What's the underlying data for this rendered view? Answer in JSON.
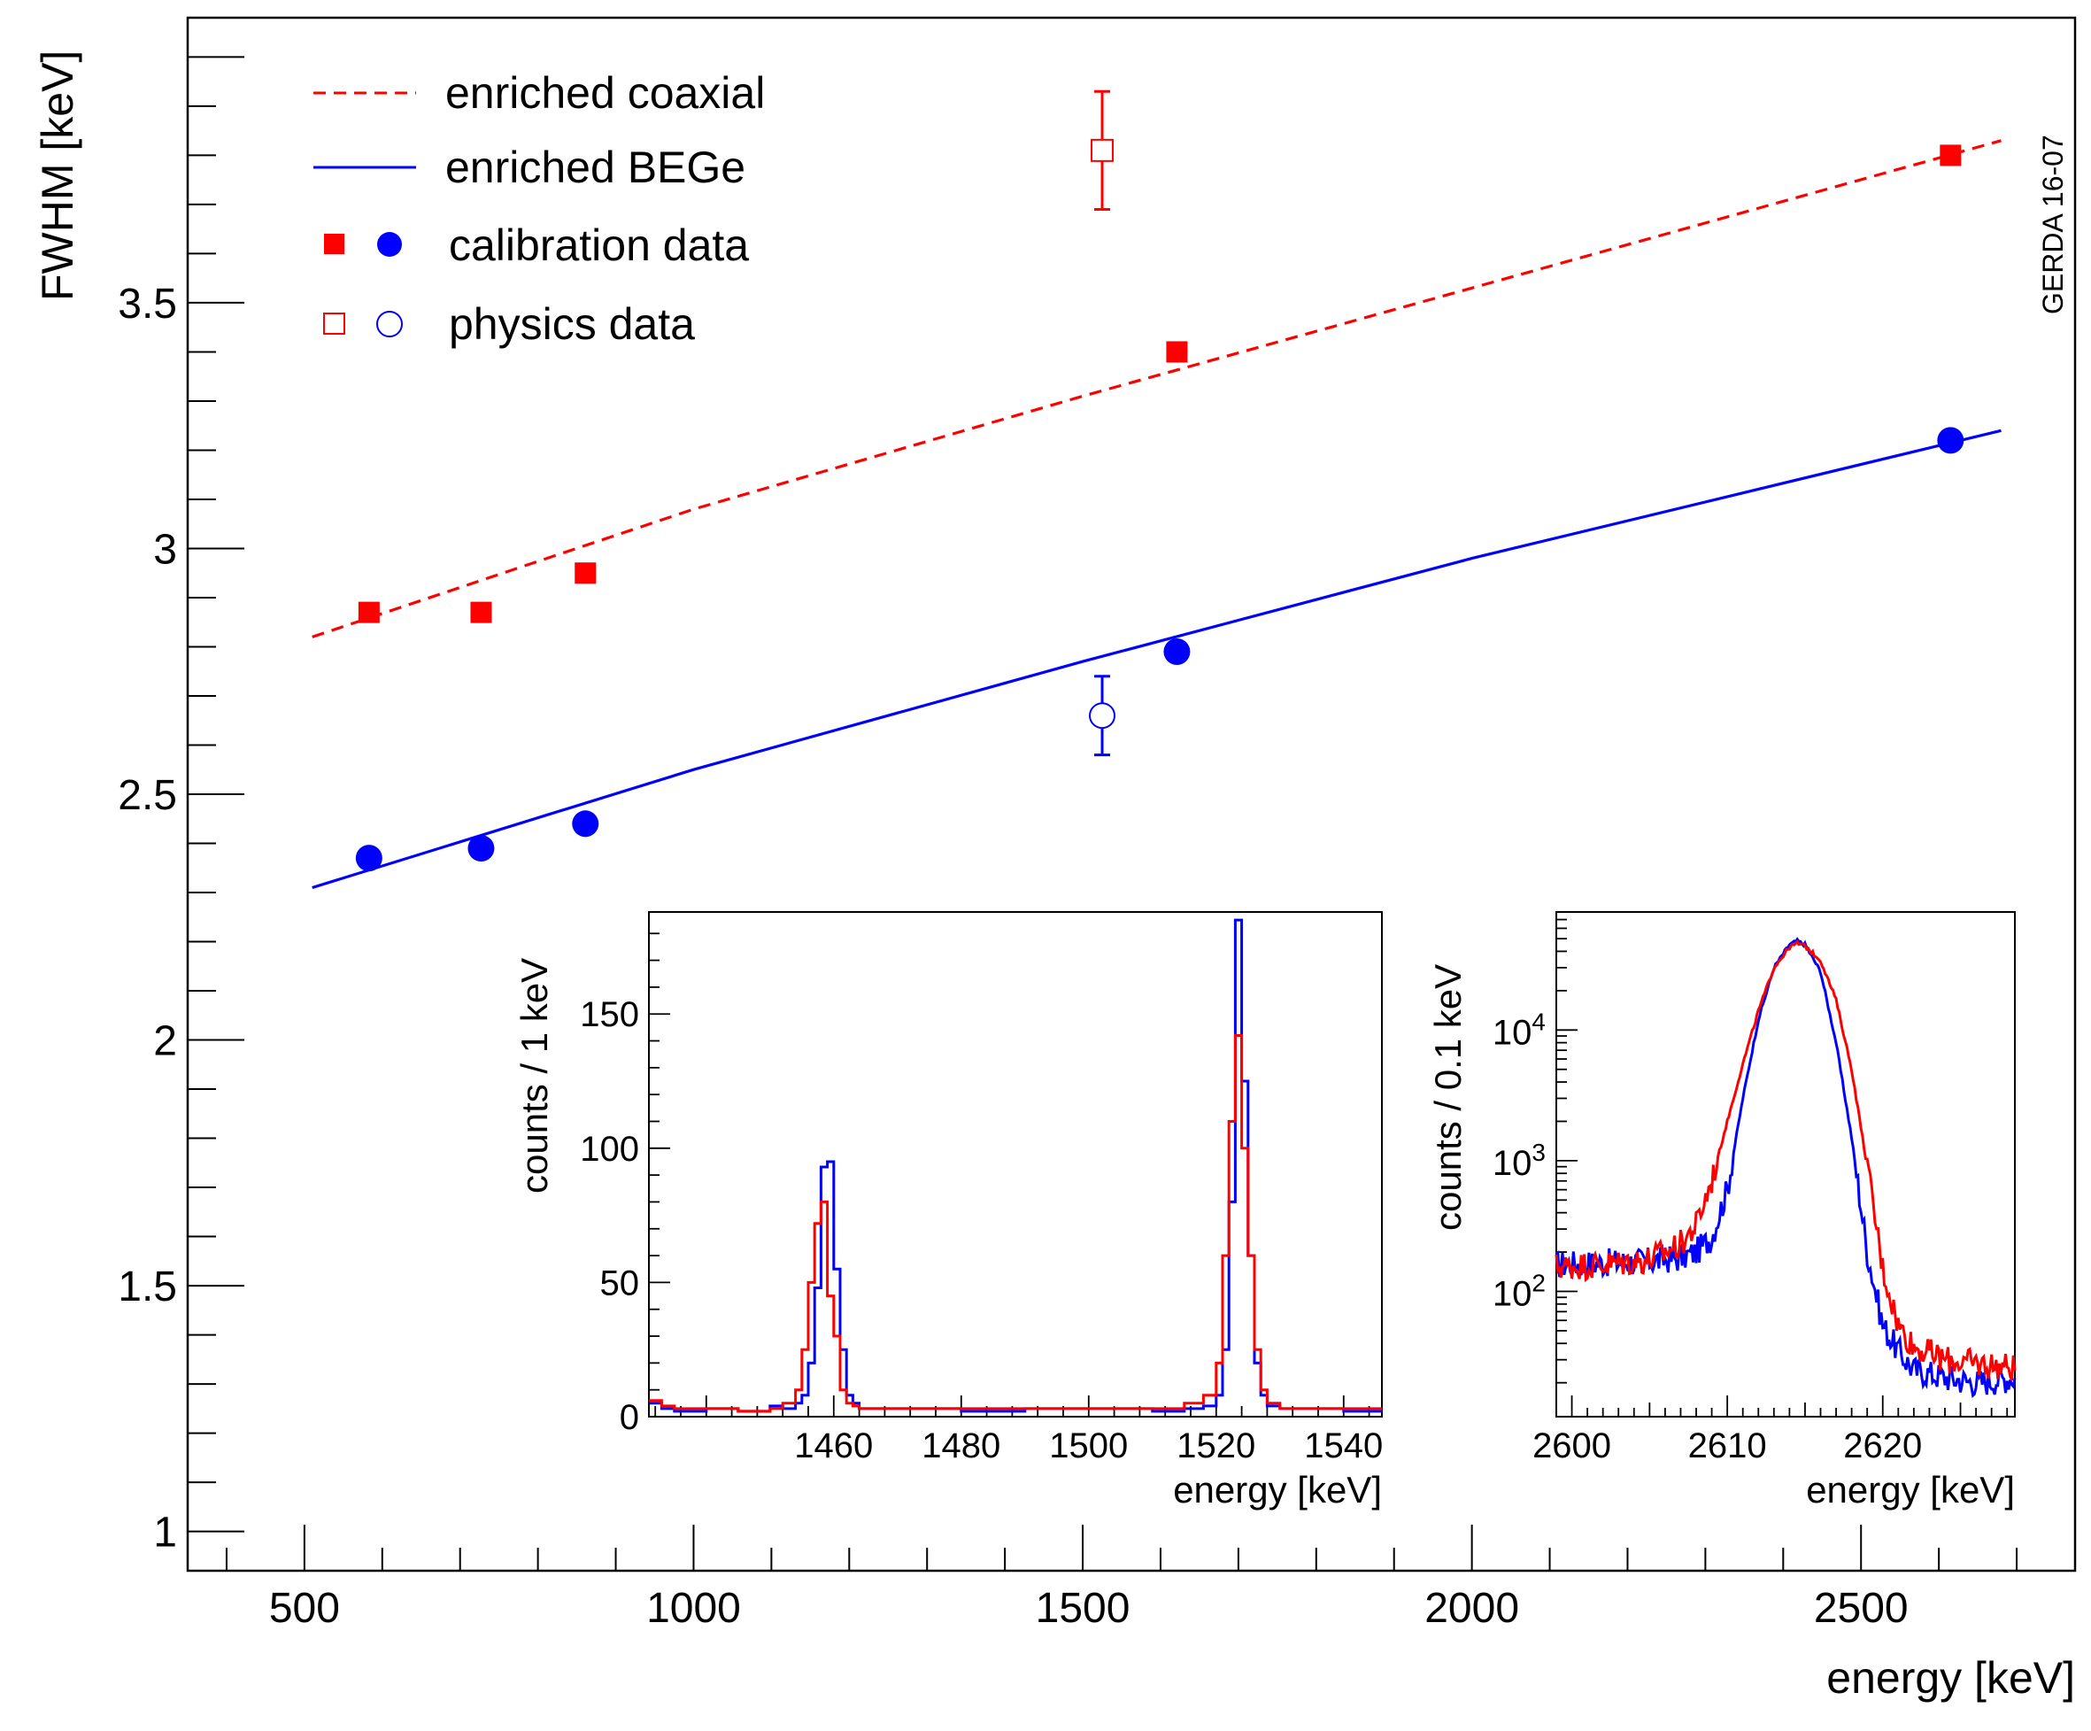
{
  "watermark": "GERDA 16-07",
  "legend": {
    "coax_line": "enriched coaxial",
    "bege_line": "enriched BEGe",
    "calibration": "calibration data",
    "physics": "physics data"
  },
  "colors": {
    "coax": "#ff0000",
    "bege": "#0000ff",
    "axis": "#000000"
  },
  "chart_data": [
    {
      "type": "scatter",
      "title": "",
      "xlabel": "energy [keV]",
      "ylabel": "FWHM [keV]",
      "xlim": [
        350,
        2775
      ],
      "ylim": [
        0.92,
        4.08
      ],
      "x_ticks": [
        "500",
        "1000",
        "1500",
        "2000",
        "2500"
      ],
      "y_ticks": [
        "1",
        "1.5",
        "2",
        "2.5",
        "3",
        "3.5"
      ],
      "fits": [
        {
          "name": "enriched coaxial",
          "style": "dashed",
          "color": "#ff0000",
          "x": [
            510,
            1000,
            1500,
            2000,
            2680
          ],
          "y": [
            2.82,
            3.08,
            3.31,
            3.53,
            3.83
          ]
        },
        {
          "name": "enriched BEGe",
          "style": "solid",
          "color": "#0000ff",
          "x": [
            510,
            1000,
            1500,
            2000,
            2680
          ],
          "y": [
            2.31,
            2.55,
            2.77,
            2.98,
            3.24
          ]
        }
      ],
      "calibration_points": {
        "coaxial": {
          "x": [
            583,
            727,
            861,
            1621,
            2615
          ],
          "y": [
            2.87,
            2.87,
            2.95,
            3.4,
            3.8
          ]
        },
        "bege": {
          "x": [
            583,
            727,
            861,
            1621,
            2615
          ],
          "y": [
            2.37,
            2.39,
            2.44,
            2.79,
            3.22
          ]
        }
      },
      "physics_points": {
        "coaxial": {
          "x": 1525,
          "y": 3.81,
          "err": 0.12
        },
        "bege": {
          "x": 1525,
          "y": 2.66,
          "err": 0.08
        }
      }
    },
    {
      "type": "line",
      "title": "",
      "xlabel": "energy [keV]",
      "ylabel": "counts / 1 keV",
      "xlim": [
        1431,
        1546
      ],
      "ylim": [
        0,
        188
      ],
      "x_ticks": [
        "1460",
        "1480",
        "1500",
        "1520",
        "1540"
      ],
      "y_ticks": [
        "0",
        "50",
        "100",
        "150"
      ],
      "series": [
        {
          "color": "#0000ff",
          "x": [
            1431,
            1433,
            1435,
            1440,
            1445,
            1450,
            1452,
            1454,
            1455,
            1456,
            1457,
            1458,
            1459,
            1460,
            1461,
            1462,
            1463,
            1464,
            1466,
            1470,
            1480,
            1490,
            1500,
            1510,
            1515,
            1518,
            1520,
            1521,
            1522,
            1523,
            1524,
            1525,
            1526,
            1527,
            1528,
            1530,
            1535,
            1540,
            1546
          ],
          "y": [
            5,
            3,
            2,
            3,
            2,
            4,
            3,
            5,
            8,
            20,
            48,
            93,
            95,
            55,
            25,
            8,
            5,
            3,
            3,
            3,
            2,
            3,
            3,
            2,
            3,
            4,
            8,
            25,
            80,
            185,
            125,
            60,
            20,
            8,
            4,
            3,
            3,
            2,
            2
          ]
        },
        {
          "color": "#ff0000",
          "x": [
            1431,
            1433,
            1435,
            1440,
            1445,
            1450,
            1452,
            1454,
            1455,
            1456,
            1457,
            1458,
            1459,
            1460,
            1461,
            1462,
            1463,
            1464,
            1466,
            1470,
            1480,
            1490,
            1500,
            1510,
            1515,
            1518,
            1520,
            1521,
            1522,
            1523,
            1524,
            1525,
            1526,
            1527,
            1528,
            1530,
            1535,
            1540,
            1546
          ],
          "y": [
            6,
            4,
            3,
            3,
            2,
            3,
            5,
            10,
            25,
            50,
            72,
            80,
            45,
            30,
            10,
            5,
            4,
            3,
            3,
            3,
            3,
            3,
            3,
            3,
            5,
            8,
            20,
            60,
            110,
            142,
            100,
            60,
            25,
            10,
            5,
            3,
            3,
            3,
            3
          ]
        }
      ]
    },
    {
      "type": "line",
      "title": "",
      "xlabel": "energy [keV]",
      "ylabel": "counts / 0.1 keV",
      "yscale": "log",
      "xlim": [
        2599,
        2628.5
      ],
      "ylim": [
        11,
        80000
      ],
      "x_ticks": [
        "2600",
        "2610",
        "2620"
      ],
      "y_ticks": [
        100,
        1000,
        10000
      ],
      "series": [
        {
          "color": "#0000ff",
          "x": [
            2599,
            2602,
            2605,
            2607,
            2608,
            2609,
            2610,
            2611,
            2612,
            2613,
            2614,
            2614.5,
            2615,
            2616,
            2617,
            2618,
            2619,
            2620,
            2621,
            2622,
            2624,
            2626,
            2628.5
          ],
          "y": [
            160,
            165,
            170,
            180,
            200,
            260,
            600,
            3000,
            12000,
            30000,
            45000,
            48000,
            45000,
            28000,
            8000,
            1500,
            200,
            55,
            35,
            25,
            22,
            20,
            22
          ]
        },
        {
          "color": "#ff0000",
          "x": [
            2599,
            2602,
            2605,
            2607,
            2608,
            2609,
            2610,
            2611,
            2612,
            2613,
            2614,
            2614.5,
            2615,
            2616,
            2617,
            2618,
            2619,
            2620,
            2621,
            2622,
            2624,
            2626,
            2628.5
          ],
          "y": [
            155,
            160,
            175,
            230,
            320,
            700,
            2000,
            5500,
            14000,
            30000,
            43000,
            46000,
            44000,
            34000,
            17000,
            5000,
            900,
            150,
            55,
            38,
            30,
            28,
            26
          ]
        }
      ]
    }
  ]
}
